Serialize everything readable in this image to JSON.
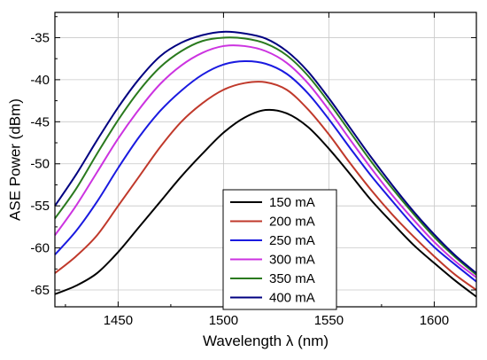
{
  "chart_data": {
    "type": "line",
    "title": "",
    "xlabel": "Wavelength λ (nm)",
    "ylabel": "ASE Power (dBm)",
    "xlim": [
      1420,
      1620
    ],
    "ylim": [
      -67,
      -32
    ],
    "xticks": [
      1450,
      1500,
      1550,
      1600
    ],
    "xtick_labels": [
      "1450",
      "1500",
      "1550",
      "1600"
    ],
    "yticks": [
      -65,
      -60,
      -55,
      -50,
      -45,
      -40,
      -35
    ],
    "ytick_labels": [
      "-65",
      "-60",
      "-55",
      "-50",
      "-45",
      "-40",
      "-35"
    ],
    "grid": true,
    "legend_position": "bottom-center",
    "x": [
      1420,
      1430,
      1440,
      1450,
      1460,
      1470,
      1480,
      1490,
      1500,
      1510,
      1520,
      1530,
      1540,
      1550,
      1560,
      1570,
      1580,
      1590,
      1600,
      1610,
      1620
    ],
    "series": [
      {
        "name": "150 mA",
        "color": "#000000",
        "values": [
          -65.5,
          -64.5,
          -63.0,
          -60.5,
          -57.5,
          -54.5,
          -51.5,
          -48.8,
          -46.3,
          -44.5,
          -43.6,
          -44.0,
          -45.6,
          -48.2,
          -51.2,
          -54.3,
          -57.0,
          -59.6,
          -61.8,
          -63.9,
          -65.8
        ]
      },
      {
        "name": "200 mA",
        "color": "#c0392b",
        "values": [
          -63.0,
          -61.0,
          -58.5,
          -55.0,
          -51.5,
          -48.0,
          -45.0,
          -42.8,
          -41.2,
          -40.4,
          -40.3,
          -41.2,
          -43.5,
          -46.5,
          -49.9,
          -53.1,
          -56.0,
          -58.6,
          -61.0,
          -63.2,
          -65.0
        ]
      },
      {
        "name": "250 mA",
        "color": "#1a1ae0",
        "values": [
          -60.8,
          -58.0,
          -54.5,
          -50.5,
          -46.8,
          -43.7,
          -41.3,
          -39.4,
          -38.2,
          -37.8,
          -38.1,
          -39.3,
          -41.6,
          -44.7,
          -48.1,
          -51.4,
          -54.4,
          -57.3,
          -59.9,
          -62.0,
          -64.0
        ]
      },
      {
        "name": "300 mA",
        "color": "#cc33e0",
        "values": [
          -58.5,
          -55.0,
          -51.0,
          -47.0,
          -43.5,
          -40.5,
          -38.3,
          -36.8,
          -36.0,
          -36.0,
          -36.6,
          -38.0,
          -40.4,
          -43.6,
          -47.1,
          -50.5,
          -53.7,
          -56.6,
          -59.3,
          -61.6,
          -63.5
        ]
      },
      {
        "name": "350 mA",
        "color": "#2a7a1e",
        "values": [
          -56.5,
          -53.0,
          -48.8,
          -44.8,
          -41.3,
          -38.5,
          -36.6,
          -35.4,
          -35.0,
          -35.1,
          -35.7,
          -37.1,
          -39.5,
          -42.7,
          -46.2,
          -49.7,
          -52.9,
          -55.9,
          -58.7,
          -61.1,
          -63.2
        ]
      },
      {
        "name": "400 mA",
        "color": "#000080",
        "values": [
          -55.0,
          -51.3,
          -47.2,
          -43.3,
          -39.9,
          -37.2,
          -35.6,
          -34.7,
          -34.3,
          -34.5,
          -35.1,
          -36.6,
          -39.0,
          -42.2,
          -45.7,
          -49.2,
          -52.5,
          -55.6,
          -58.4,
          -60.9,
          -63.0
        ]
      }
    ]
  }
}
